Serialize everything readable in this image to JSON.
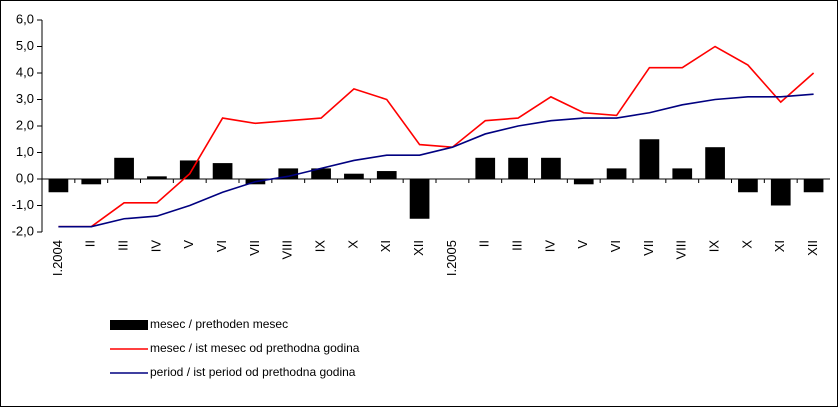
{
  "chart_data": {
    "type": "combo",
    "categories": [
      "I.2004",
      "II",
      "III",
      "IV",
      "V",
      "VI",
      "VII",
      "VIII",
      "IX",
      "X",
      "XI",
      "XII",
      "I.2005",
      "II",
      "III",
      "IV",
      "V",
      "VI",
      "VII",
      "VIII",
      "IX",
      "X",
      "XI",
      "XII"
    ],
    "series": [
      {
        "name": "mesec / prethoden mesec",
        "type": "bar",
        "color": "#000000",
        "values": [
          -0.5,
          -0.2,
          0.8,
          0.1,
          0.7,
          0.6,
          -0.2,
          0.4,
          0.4,
          0.2,
          0.3,
          -1.5,
          0.0,
          0.8,
          0.8,
          0.8,
          -0.2,
          0.4,
          1.5,
          0.4,
          1.2,
          -0.5,
          -1.0,
          -0.5
        ]
      },
      {
        "name": "mesec / ist mesec od prethodna godina",
        "type": "line",
        "color": "#ff0000",
        "values": [
          -1.8,
          -1.8,
          -0.9,
          -0.9,
          0.2,
          2.3,
          2.1,
          2.2,
          2.3,
          3.4,
          3.0,
          1.3,
          1.2,
          2.2,
          2.3,
          3.1,
          2.5,
          2.4,
          4.2,
          4.2,
          5.0,
          4.3,
          2.9,
          4.0
        ]
      },
      {
        "name": "period / ist period od prethodna godina",
        "type": "line",
        "color": "#000080",
        "values": [
          -1.8,
          -1.8,
          -1.5,
          -1.4,
          -1.0,
          -0.5,
          -0.1,
          0.1,
          0.4,
          0.7,
          0.9,
          0.9,
          1.2,
          1.7,
          2.0,
          2.2,
          2.3,
          2.3,
          2.5,
          2.8,
          3.0,
          3.1,
          3.1,
          3.2
        ]
      }
    ],
    "ylim": [
      -2,
      6
    ],
    "yticks": [
      {
        "value": -2,
        "label": "-2,0"
      },
      {
        "value": -1,
        "label": "-1,0"
      },
      {
        "value": 0,
        "label": "0,0"
      },
      {
        "value": 1,
        "label": "1,0"
      },
      {
        "value": 2,
        "label": "2,0"
      },
      {
        "value": 3,
        "label": "3,0"
      },
      {
        "value": 4,
        "label": "4,0"
      },
      {
        "value": 5,
        "label": "5,0"
      },
      {
        "value": 6,
        "label": "6,0"
      }
    ],
    "grid": false,
    "legend": "bottom"
  }
}
